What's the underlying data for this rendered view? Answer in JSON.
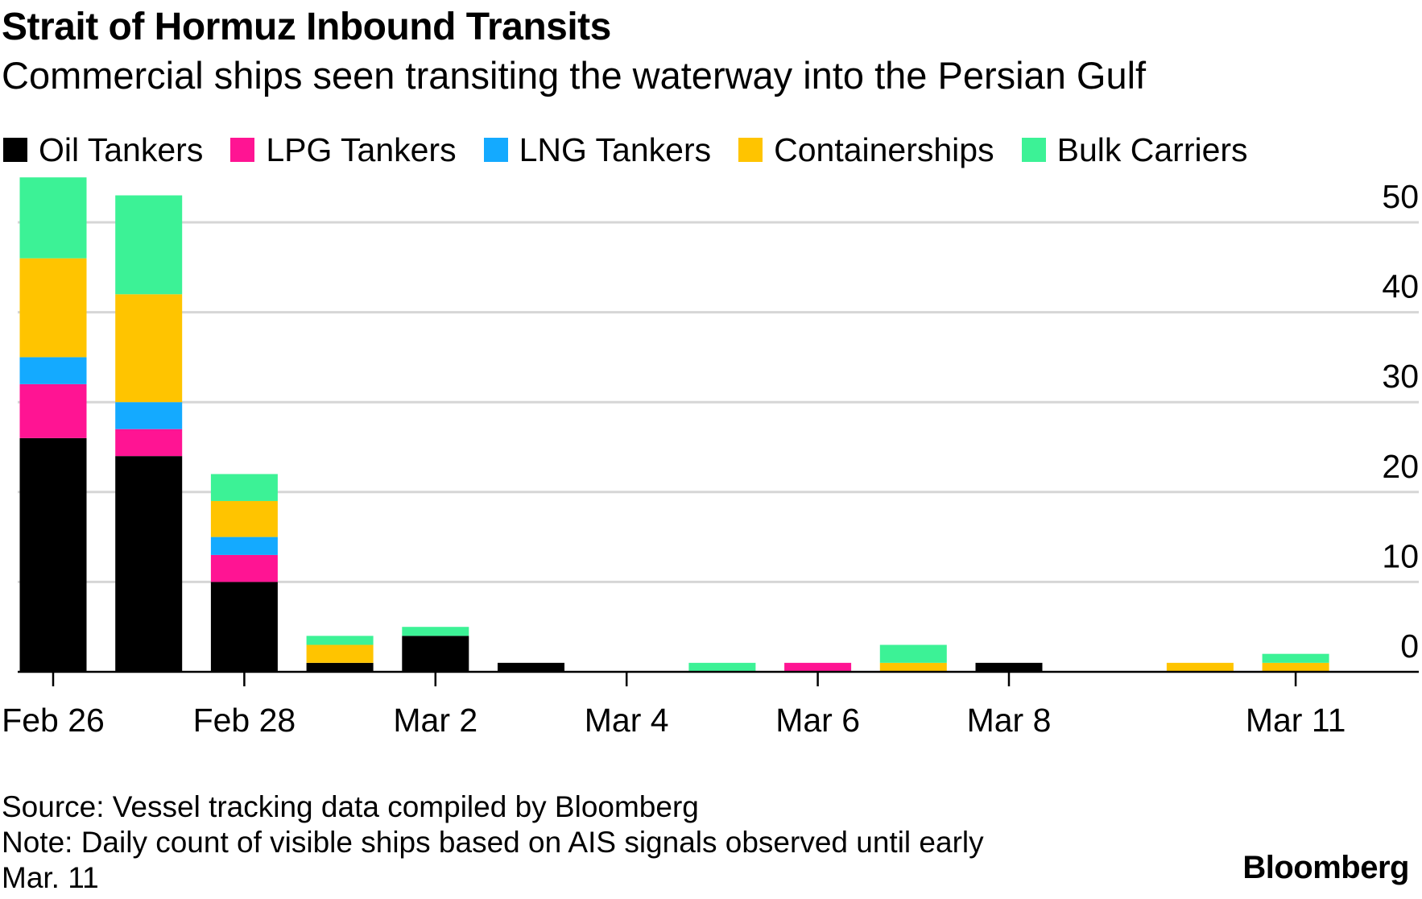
{
  "title": "Strait of Hormuz Inbound Transits",
  "subtitle": "Commercial ships seen transiting the waterway into the Persian Gulf",
  "legend": [
    {
      "name": "Oil Tankers",
      "color": "#000000"
    },
    {
      "name": "LPG Tankers",
      "color": "#ff1493"
    },
    {
      "name": "LNG Tankers",
      "color": "#14aaff"
    },
    {
      "name": "Containerships",
      "color": "#ffc400"
    },
    {
      "name": "Bulk Carriers",
      "color": "#3cf296"
    }
  ],
  "footer": {
    "source": "Source: Vessel tracking data compiled by Bloomberg",
    "note_line1": "Note: Daily count of visible ships based on AIS signals observed until early",
    "note_line2": "Mar. 11"
  },
  "brand": "Bloomberg",
  "chart_data": {
    "type": "bar",
    "stacked": true,
    "title": "Strait of Hormuz Inbound Transits",
    "subtitle": "Commercial ships seen transiting the waterway into the Persian Gulf",
    "xlabel": "",
    "ylabel": "",
    "ylim": [
      0,
      50
    ],
    "yticks": [
      0,
      10,
      20,
      30,
      40,
      50
    ],
    "grid": true,
    "legend_position": "top",
    "categories": [
      "Feb 26",
      "Feb 27",
      "Feb 28",
      "Mar 1",
      "Mar 2",
      "Mar 3",
      "Mar 4",
      "Mar 5",
      "Mar 6",
      "Mar 7",
      "Mar 8",
      "Mar 9",
      "Mar 10",
      "Mar 11"
    ],
    "tick_labels": [
      {
        "index": 0,
        "label": "Feb 26"
      },
      {
        "index": 2,
        "label": "Feb 28"
      },
      {
        "index": 4,
        "label": "Mar 2"
      },
      {
        "index": 6,
        "label": "Mar 4"
      },
      {
        "index": 8,
        "label": "Mar 6"
      },
      {
        "index": 10,
        "label": "Mar 8"
      },
      {
        "index": 13,
        "label": "Mar 11"
      }
    ],
    "series": [
      {
        "name": "Oil Tankers",
        "color": "#000000",
        "values": [
          26,
          24,
          10,
          1,
          4,
          1,
          0,
          0,
          0,
          0,
          1,
          0,
          0,
          0
        ]
      },
      {
        "name": "LPG Tankers",
        "color": "#ff1493",
        "values": [
          6,
          3,
          3,
          0,
          0,
          0,
          0,
          0,
          1,
          0,
          0,
          0,
          0,
          0
        ]
      },
      {
        "name": "LNG Tankers",
        "color": "#14aaff",
        "values": [
          3,
          3,
          2,
          0,
          0,
          0,
          0,
          0,
          0,
          0,
          0,
          0,
          0,
          0
        ]
      },
      {
        "name": "Containerships",
        "color": "#ffc400",
        "values": [
          11,
          12,
          4,
          2,
          0,
          0,
          0,
          0,
          0,
          1,
          0,
          0,
          1,
          1
        ]
      },
      {
        "name": "Bulk Carriers",
        "color": "#3cf296",
        "values": [
          9,
          11,
          3,
          1,
          1,
          0,
          0,
          1,
          0,
          2,
          0,
          0,
          0,
          1
        ]
      }
    ]
  }
}
